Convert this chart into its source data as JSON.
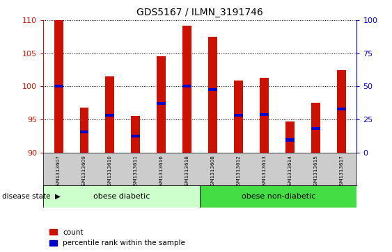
{
  "title": "GDS5167 / ILMN_3191746",
  "samples": [
    "GSM1313607",
    "GSM1313609",
    "GSM1313610",
    "GSM1313611",
    "GSM1313616",
    "GSM1313618",
    "GSM1313608",
    "GSM1313612",
    "GSM1313613",
    "GSM1313614",
    "GSM1313615",
    "GSM1313617"
  ],
  "count_values": [
    110.0,
    96.8,
    101.5,
    95.5,
    104.5,
    109.2,
    107.5,
    100.9,
    101.3,
    94.7,
    97.5,
    102.5
  ],
  "percentile_values": [
    50.0,
    15.5,
    28.0,
    12.5,
    37.0,
    50.0,
    47.5,
    28.0,
    28.5,
    9.5,
    18.0,
    33.0
  ],
  "ylim_left": [
    90,
    110
  ],
  "ylim_right": [
    0,
    100
  ],
  "yticks_left": [
    90,
    95,
    100,
    105,
    110
  ],
  "yticks_right": [
    0,
    25,
    50,
    75,
    100
  ],
  "bar_color": "#cc1100",
  "percentile_color": "#0000cc",
  "group1_label": "obese diabetic",
  "group2_label": "obese non-diabetic",
  "group1_count": 6,
  "group2_count": 6,
  "disease_state_label": "disease state",
  "legend_count_label": "count",
  "legend_percentile_label": "percentile rank within the sample",
  "group1_color": "#ccffcc",
  "group2_color": "#44dd44",
  "bar_color_left_axis": "#cc1100",
  "ylabel_right_color": "#0000cc",
  "tick_area_color": "#cccccc",
  "bar_width": 0.35
}
